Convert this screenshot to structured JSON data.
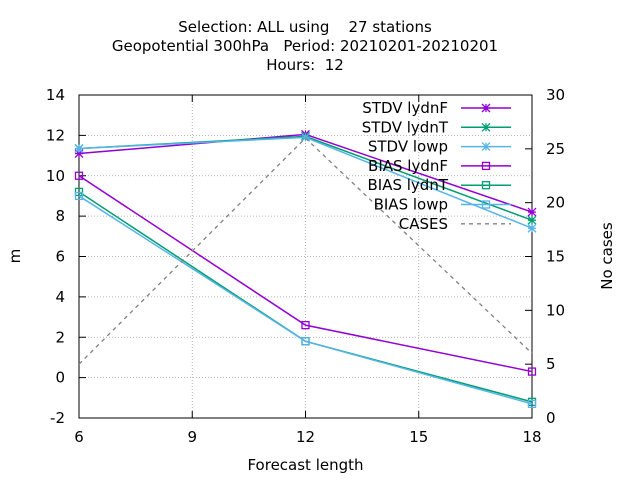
{
  "chart_data": {
    "type": "line",
    "title_lines": [
      "Selection: ALL using    27 stations",
      "Geopotential 300hPa   Period: 20210201-20210201",
      "Hours:  12"
    ],
    "xlabel": "Forecast length",
    "ylabel": "m",
    "y2label": "No cases",
    "x": [
      6,
      12,
      18
    ],
    "xlim": [
      6,
      18
    ],
    "xticks": [
      6,
      9,
      12,
      15,
      18
    ],
    "ylim": [
      -2,
      14
    ],
    "yticks": [
      -2,
      0,
      2,
      4,
      6,
      8,
      10,
      12,
      14
    ],
    "y2lim": [
      0,
      30
    ],
    "y2ticks": [
      0,
      5,
      10,
      15,
      20,
      25,
      30
    ],
    "grid": true,
    "legend_position": "top-right",
    "series": [
      {
        "name": "STDV lydnF",
        "axis": "y",
        "color": "#9400d3",
        "marker": "star",
        "dash": false,
        "values": [
          11.1,
          12.05,
          8.2
        ]
      },
      {
        "name": "STDV lydnT",
        "axis": "y",
        "color": "#009e73",
        "marker": "star",
        "dash": false,
        "values": [
          11.35,
          11.95,
          7.8
        ]
      },
      {
        "name": "STDV lowp",
        "axis": "y",
        "color": "#56b4e9",
        "marker": "star",
        "dash": false,
        "values": [
          11.35,
          11.9,
          7.4
        ]
      },
      {
        "name": "BIAS lydnF",
        "axis": "y",
        "color": "#9400d3",
        "marker": "square",
        "dash": false,
        "values": [
          10.0,
          2.6,
          0.3
        ]
      },
      {
        "name": "BIAS lydnT",
        "axis": "y",
        "color": "#009e73",
        "marker": "square",
        "dash": false,
        "values": [
          9.2,
          1.8,
          -1.2
        ]
      },
      {
        "name": "BIAS lowp",
        "axis": "y",
        "color": "#56b4e9",
        "marker": "square",
        "dash": false,
        "values": [
          9.0,
          1.8,
          -1.3
        ]
      },
      {
        "name": "CASES",
        "axis": "y2",
        "color": "#808080",
        "marker": "none",
        "dash": true,
        "values": [
          5,
          26,
          6
        ]
      }
    ]
  }
}
